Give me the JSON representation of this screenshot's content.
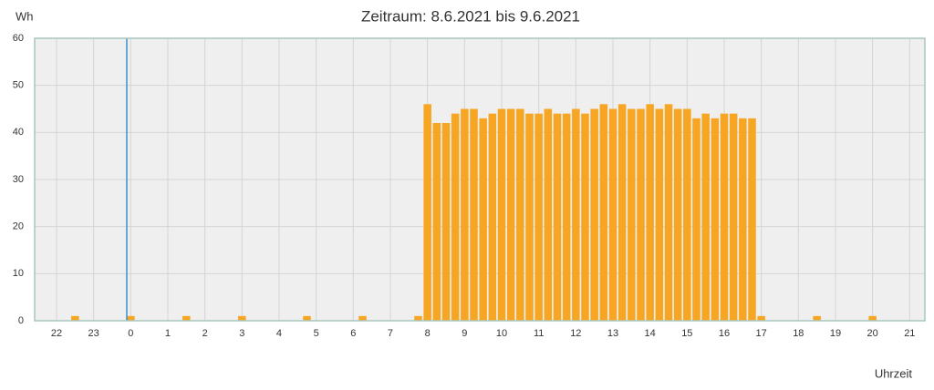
{
  "chart_data": {
    "type": "bar",
    "title": "Zeitraum: 8.6.2021 bis 9.6.2021",
    "y_label": "Wh",
    "x_label": "Uhrzeit",
    "x": [
      -1.5,
      0,
      1.5,
      3,
      4.75,
      6.25,
      7.75,
      8,
      8.25,
      8.5,
      8.75,
      9,
      9.25,
      9.5,
      9.75,
      10,
      10.25,
      10.5,
      10.75,
      11,
      11.25,
      11.5,
      11.75,
      12,
      12.25,
      12.5,
      12.75,
      13,
      13.25,
      13.5,
      13.75,
      14,
      14.25,
      14.5,
      14.75,
      15,
      15.25,
      15.5,
      15.75,
      16,
      16.25,
      16.5,
      16.75,
      17,
      18.5,
      20
    ],
    "values": [
      1,
      1,
      1,
      1,
      1,
      1,
      1,
      46,
      42,
      42,
      44,
      45,
      45,
      43,
      44,
      45,
      45,
      45,
      44,
      44,
      45,
      44,
      44,
      45,
      44,
      45,
      46,
      45,
      46,
      45,
      45,
      46,
      45,
      46,
      45,
      45,
      43,
      44,
      43,
      44,
      44,
      43,
      43,
      1,
      1,
      1
    ],
    "color": "#f6a623",
    "xlim": [
      -2.59,
      21.41
    ],
    "xticks": [
      {
        "value": -2,
        "label": "22"
      },
      {
        "value": -1,
        "label": "23"
      },
      0,
      1,
      2,
      3,
      4,
      5,
      6,
      7,
      8,
      9,
      10,
      11,
      12,
      13,
      14,
      15,
      16,
      17,
      18,
      19,
      20,
      21
    ],
    "ylim": [
      0,
      60
    ],
    "yticks": [
      0,
      10,
      20,
      30,
      40,
      50,
      60
    ],
    "grid": true
  }
}
